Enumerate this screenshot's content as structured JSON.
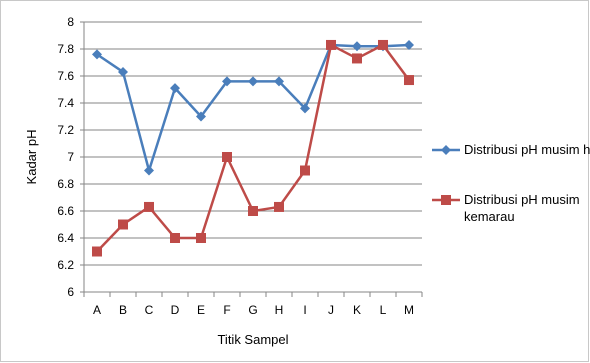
{
  "chart_data": {
    "type": "line",
    "title": "",
    "xlabel": "Titik Sampel",
    "ylabel": "Kadar pH",
    "categories": [
      "A",
      "B",
      "C",
      "D",
      "E",
      "F",
      "G",
      "H",
      "I",
      "J",
      "K",
      "L",
      "M"
    ],
    "ylim": [
      6,
      8
    ],
    "ytick_step": 0.2,
    "yticks": [
      "6",
      "6.2",
      "6.4",
      "6.6",
      "6.8",
      "7",
      "7.2",
      "7.4",
      "7.6",
      "7.8",
      "8"
    ],
    "grid": true,
    "legend": "right",
    "series": [
      {
        "name": "Distribusi pH musim h",
        "color": "#4a7ebb",
        "marker": "diamond",
        "values": [
          7.76,
          7.63,
          6.9,
          7.51,
          7.3,
          7.56,
          7.56,
          7.56,
          7.36,
          7.83,
          7.82,
          7.82,
          7.83
        ]
      },
      {
        "name": "Distribusi pH musim kemarau",
        "name_lines": [
          "Distribusi pH musim",
          "kemarau"
        ],
        "color": "#be4b48",
        "marker": "square",
        "values": [
          6.3,
          6.5,
          6.63,
          6.4,
          6.4,
          7.0,
          6.6,
          6.63,
          6.9,
          7.83,
          7.73,
          7.83,
          7.57
        ]
      }
    ]
  }
}
